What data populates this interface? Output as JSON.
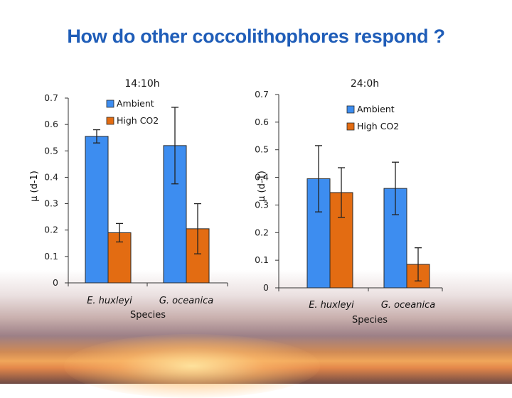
{
  "slide": {
    "title": "How do other coccolithophores respond ?"
  },
  "colors": {
    "ambient": "#3d8df0",
    "high_co2": "#e36c12",
    "title": "#1f5db8"
  },
  "chart_data": [
    {
      "type": "bar",
      "title": "14:10h",
      "xlabel": "Species",
      "ylabel": "μ (d-1)",
      "ylim": [
        0,
        0.7
      ],
      "yticks": [
        "0",
        "0.1",
        "0.2",
        "0.3",
        "0.4",
        "0.5",
        "0.6",
        "0.7"
      ],
      "categories": [
        "E. huxleyi",
        "G. oceanica"
      ],
      "series": [
        {
          "name": "Ambient",
          "values": [
            0.555,
            0.52
          ],
          "errors": [
            0.025,
            0.145
          ]
        },
        {
          "name": "High CO2",
          "values": [
            0.19,
            0.205
          ],
          "errors": [
            0.035,
            0.095
          ]
        }
      ]
    },
    {
      "type": "bar",
      "title": "24:0h",
      "xlabel": "Species",
      "ylabel": "μ (d-1)",
      "ylim": [
        0,
        0.7
      ],
      "yticks": [
        "0",
        "0.1",
        "0.2",
        "0.3",
        "0.4",
        "0.5",
        "0.6",
        "0.7"
      ],
      "categories": [
        "E. huxleyi",
        "G. oceanica"
      ],
      "series": [
        {
          "name": "Ambient",
          "values": [
            0.395,
            0.36
          ],
          "errors": [
            0.12,
            0.095
          ]
        },
        {
          "name": "High CO2",
          "values": [
            0.345,
            0.085
          ],
          "errors": [
            0.09,
            0.06
          ]
        }
      ]
    }
  ]
}
